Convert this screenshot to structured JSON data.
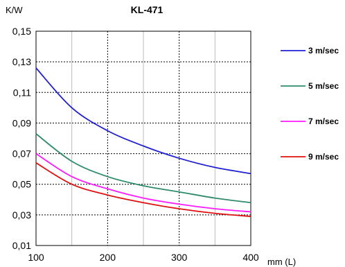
{
  "chart_data": {
    "type": "line",
    "title": "KL-471",
    "xlabel": "mm (L)",
    "ylabel": "K/W",
    "xlim": [
      100,
      400
    ],
    "ylim": [
      0.01,
      0.15
    ],
    "x_ticks": [
      100,
      200,
      300,
      400
    ],
    "y_ticks": [
      "0,15",
      "0,13",
      "0,11",
      "0,09",
      "0,07",
      "0,05",
      "0,03",
      "0,01"
    ],
    "y_tick_values": [
      0.15,
      0.13,
      0.11,
      0.09,
      0.07,
      0.05,
      0.03,
      0.01
    ],
    "x_minor_grid": [
      150,
      250,
      350
    ],
    "grid": true,
    "legend_position": "right",
    "series": [
      {
        "name": "3 m/sec",
        "color": "#1f1fd6",
        "x": [
          100,
          150,
          200,
          250,
          300,
          350,
          400
        ],
        "y": [
          0.126,
          0.1,
          0.085,
          0.075,
          0.067,
          0.061,
          0.057
        ]
      },
      {
        "name": "5 m/sec",
        "color": "#2e8b6a",
        "x": [
          100,
          150,
          200,
          250,
          300,
          350,
          400
        ],
        "y": [
          0.083,
          0.065,
          0.055,
          0.049,
          0.045,
          0.041,
          0.038
        ]
      },
      {
        "name": "7 m/sec",
        "color": "#ff1aff",
        "x": [
          100,
          150,
          200,
          250,
          300,
          350,
          400
        ],
        "y": [
          0.07,
          0.055,
          0.047,
          0.041,
          0.037,
          0.034,
          0.032
        ]
      },
      {
        "name": "9 m/sec",
        "color": "#e01010",
        "x": [
          100,
          150,
          200,
          250,
          300,
          350,
          400
        ],
        "y": [
          0.064,
          0.05,
          0.043,
          0.038,
          0.034,
          0.031,
          0.029
        ]
      }
    ]
  }
}
